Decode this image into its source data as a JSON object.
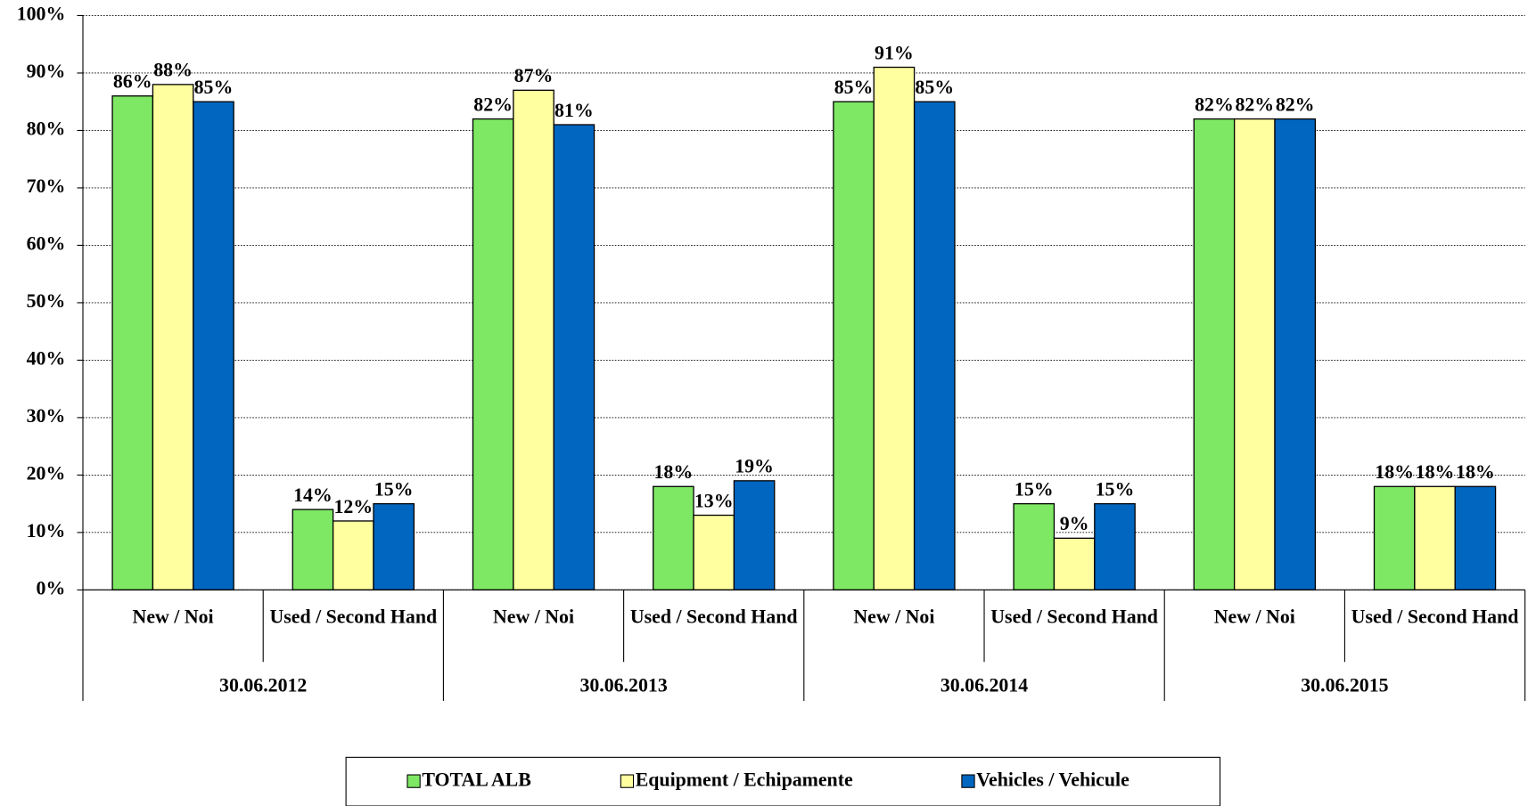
{
  "chart_data": {
    "type": "bar",
    "categories": [
      "New / Noi",
      "Used / Second Hand",
      "New / Noi",
      "Used / Second Hand",
      "New / Noi",
      "Used / Second Hand",
      "New / Noi",
      "Used / Second Hand"
    ],
    "groups": [
      "30.06.2012",
      "30.06.2013",
      "30.06.2014",
      "30.06.2015"
    ],
    "series": [
      {
        "name": "TOTAL ALB",
        "color": "#7ee864",
        "values": [
          86,
          14,
          82,
          18,
          85,
          15,
          82,
          18
        ],
        "value_labels": [
          "86%",
          "14%",
          "82%",
          "18%",
          "85%",
          "15%",
          "82%",
          "18%"
        ]
      },
      {
        "name": "Equipment / Echipamente",
        "color": "#ffffa0",
        "values": [
          88,
          12,
          87,
          13,
          91,
          9,
          82,
          18
        ],
        "value_labels": [
          "88%",
          "12%",
          "87%",
          "13%",
          "91%",
          "9%",
          "82%",
          "18%"
        ]
      },
      {
        "name": "Vehicles / Vehicule",
        "color": "#0066c0",
        "values": [
          85,
          15,
          81,
          19,
          85,
          15,
          82,
          18
        ],
        "value_labels": [
          "85%",
          "15%",
          "81%",
          "19%",
          "85%",
          "15%",
          "82%",
          "18%"
        ]
      }
    ],
    "ylim": [
      0,
      100
    ],
    "yticks": [
      {
        "value": 0,
        "label": "0%"
      },
      {
        "value": 10,
        "label": "10%"
      },
      {
        "value": 20,
        "label": "20%"
      },
      {
        "value": 30,
        "label": "30%"
      },
      {
        "value": 40,
        "label": "40%"
      },
      {
        "value": 50,
        "label": "50%"
      },
      {
        "value": 60,
        "label": "60%"
      },
      {
        "value": 70,
        "label": "70%"
      },
      {
        "value": 80,
        "label": "80%"
      },
      {
        "value": 90,
        "label": "90%"
      },
      {
        "value": 100,
        "label": "100%"
      }
    ],
    "grid": true,
    "legend": "bottom"
  }
}
